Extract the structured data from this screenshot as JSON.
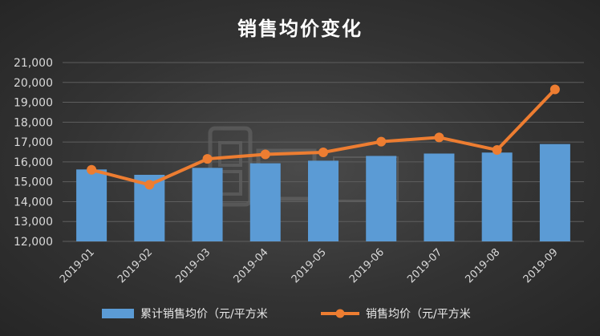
{
  "chart_data": {
    "type": "bar+line",
    "title": "销售均价变化",
    "categories": [
      "2019-01",
      "2019-02",
      "2019-03",
      "2019-04",
      "2019-05",
      "2019-06",
      "2019-07",
      "2019-08",
      "2019-09"
    ],
    "series": [
      {
        "name": "累计销售均价（元/平方米",
        "type": "bar",
        "color": "#5b9bd5",
        "values": [
          15620,
          15350,
          15700,
          15930,
          16060,
          16300,
          16420,
          16470,
          16900
        ]
      },
      {
        "name": "销售均价（元/平方米",
        "type": "line",
        "color": "#ed7d31",
        "values": [
          15600,
          14850,
          16150,
          16380,
          16480,
          17020,
          17230,
          16600,
          19650
        ]
      }
    ],
    "ylim": [
      12000,
      21000
    ],
    "yticks": [
      "12,000",
      "13,000",
      "14,000",
      "15,000",
      "16,000",
      "17,000",
      "18,000",
      "19,000",
      "20,000",
      "21,000"
    ],
    "grid": true,
    "legend_position": "bottom"
  }
}
